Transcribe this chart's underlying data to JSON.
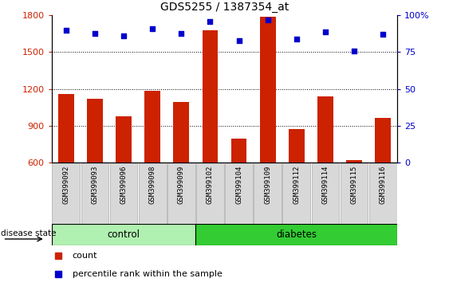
{
  "title": "GDS5255 / 1387354_at",
  "categories": [
    "GSM399092",
    "GSM399093",
    "GSM399096",
    "GSM399098",
    "GSM399099",
    "GSM399102",
    "GSM399104",
    "GSM399109",
    "GSM399112",
    "GSM399114",
    "GSM399115",
    "GSM399116"
  ],
  "counts": [
    1155,
    1120,
    975,
    1185,
    1090,
    1680,
    790,
    1790,
    870,
    1140,
    615,
    960
  ],
  "percentiles": [
    90,
    88,
    86,
    91,
    88,
    96,
    83,
    97,
    84,
    89,
    76,
    87
  ],
  "bar_bottom": 600,
  "ylim_left": [
    600,
    1800
  ],
  "ylim_right": [
    0,
    100
  ],
  "yticks_left": [
    600,
    900,
    1200,
    1500,
    1800
  ],
  "yticks_right": [
    0,
    25,
    50,
    75,
    100
  ],
  "bar_color": "#cc2200",
  "dot_color": "#0000cc",
  "control_color": "#b0f0b0",
  "diabetes_color": "#33cc33",
  "control_n": 5,
  "diabetes_n": 7,
  "control_label": "control",
  "diabetes_label": "diabetes",
  "disease_label": "disease state",
  "legend_count": "count",
  "legend_percentile": "percentile rank within the sample",
  "grid_dotted_values": [
    900,
    1200,
    1500
  ],
  "right_axis_label_color": "#0000cc",
  "left_axis_label_color": "#cc2200",
  "bar_width": 0.55,
  "bg_color": "#ffffff"
}
